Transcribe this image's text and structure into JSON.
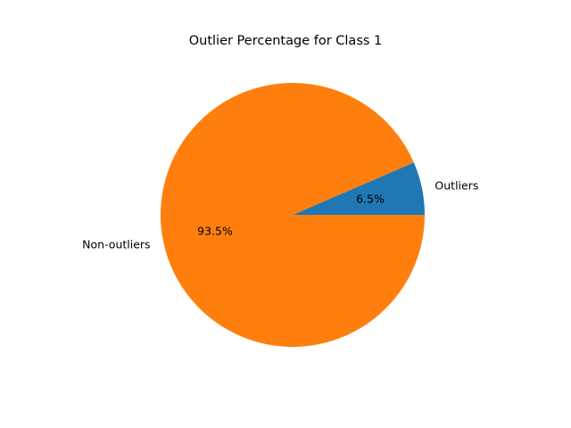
{
  "chart_data": {
    "type": "pie",
    "title": "Outlier Percentage for Class 1",
    "categories": [
      "Outliers",
      "Non-outliers"
    ],
    "values": [
      6.5,
      93.5
    ],
    "percent_labels": [
      "6.5%",
      "93.5%"
    ],
    "colors": [
      "#1f77b4",
      "#ff7f0e"
    ],
    "start_angle_deg": 0,
    "direction": "counterclockwise",
    "legend": "none"
  }
}
